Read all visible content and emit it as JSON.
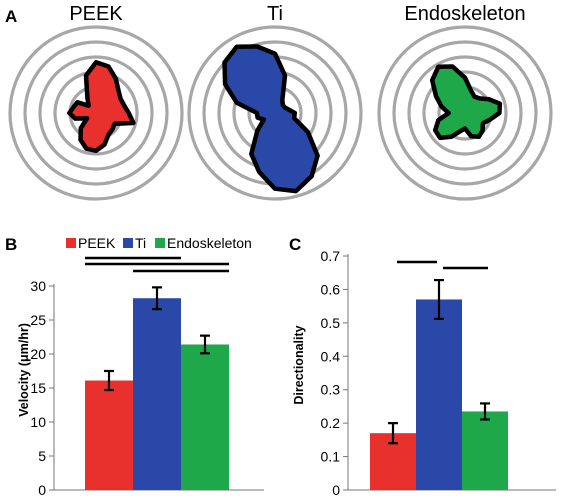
{
  "panel_labels": {
    "a": "A",
    "b": "B",
    "c": "C"
  },
  "colors": {
    "peek": "#e8302d",
    "ti": "#2a48a8",
    "endo": "#1ea84a",
    "ring": "#a7a7a7",
    "outline": "#000000"
  },
  "chart_data": [
    {
      "panel": "A",
      "type": "polar-rose",
      "roses": [
        {
          "title": "PEEK",
          "color": "#e8302d",
          "radius": [
            0.38,
            0.34,
            0.33,
            0.37,
            0.46,
            0.56,
            0.59,
            0.45,
            0.2,
            0.12,
            0.25,
            0.27,
            0.31,
            0.25,
            0.12,
            0.25,
            0.36,
            0.43,
            0.44,
            0.38,
            0.29,
            0.27,
            0.25,
            0.45
          ]
        },
        {
          "title": "Ti",
          "color": "#2a48a8",
          "radius": [
            0.23,
            0.16,
            0.13,
            0.13,
            0.17,
            0.45,
            0.69,
            0.8,
            0.89,
            0.83,
            0.67,
            0.46,
            0.21,
            0.21,
            0.15,
            0.29,
            0.55,
            0.71,
            0.88,
            0.94,
            0.85,
            0.7,
            0.44,
            0.23
          ]
        },
        {
          "title": "Endoskeleton",
          "color": "#1ea84a",
          "radius": [
            0.4,
            0.42,
            0.32,
            0.24,
            0.22,
            0.27,
            0.41,
            0.56,
            0.62,
            0.54,
            0.39,
            0.28,
            0.19,
            0.32,
            0.4,
            0.41,
            0.32,
            0.22,
            0.18,
            0.28,
            0.32,
            0.29,
            0.24,
            0.3
          ]
        }
      ]
    },
    {
      "panel": "B",
      "type": "bar",
      "categories": [
        "PEEK",
        "Ti",
        "Endoskeleton"
      ],
      "values": [
        16.1,
        28.2,
        21.4
      ],
      "errors": [
        1.4,
        1.6,
        1.3
      ],
      "ylabel": "Velocity (μm/hr)",
      "ylim": [
        0,
        30
      ],
      "yticks": [
        "0",
        "5",
        "10",
        "15",
        "20",
        "25",
        "30"
      ],
      "legend": [
        "PEEK",
        "Ti",
        "Endoskeleton"
      ],
      "legend_position": "top",
      "significance_pairs": [
        [
          "PEEK",
          "Ti"
        ],
        [
          "PEEK",
          "Endoskeleton"
        ],
        [
          "Ti",
          "Endoskeleton"
        ]
      ]
    },
    {
      "panel": "C",
      "type": "bar",
      "categories": [
        "PEEK",
        "Ti",
        "Endoskeleton"
      ],
      "values": [
        0.17,
        0.57,
        0.235
      ],
      "errors": [
        0.03,
        0.058,
        0.024
      ],
      "ylabel": "Directionality",
      "ylim": [
        0,
        0.7
      ],
      "yticks": [
        "0",
        "0.1",
        "0.2",
        "0.3",
        "0.4",
        "0.5",
        "0.6",
        "0.7"
      ],
      "significance_pairs": [
        [
          "PEEK",
          "Ti"
        ],
        [
          "Ti",
          "Endoskeleton"
        ]
      ]
    }
  ]
}
